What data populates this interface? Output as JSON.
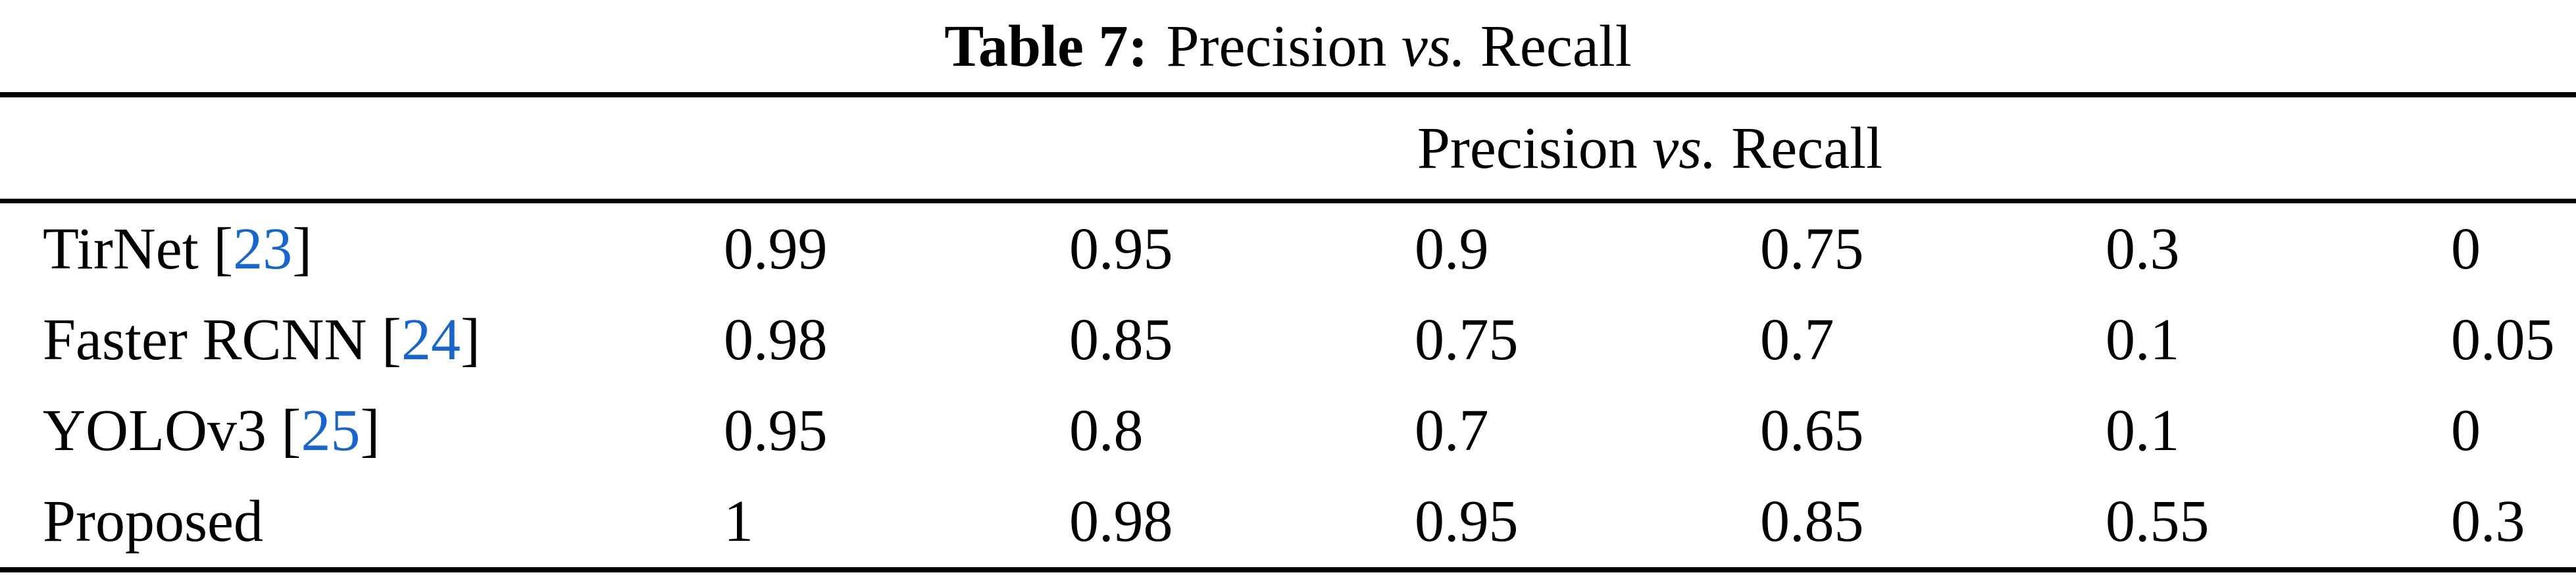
{
  "colors": {
    "text": "#000000",
    "citation_link": "#1565d2",
    "rule": "#000000",
    "background": "#ffffff"
  },
  "caption": {
    "prefix_bold": "Table 7:",
    "middle": "Precision ",
    "vs_italic": "vs.",
    "suffix": " Recall"
  },
  "header": {
    "middle": "Precision ",
    "vs_italic": "vs.",
    "suffix": " Recall"
  },
  "punctuation": {
    "cite_open": " [",
    "cite_close": "]"
  },
  "table": {
    "rows": [
      {
        "label": "TirNet",
        "cite": "23",
        "values": [
          "0.99",
          "0.95",
          "0.9",
          "0.75",
          "0.3",
          "0"
        ]
      },
      {
        "label": "Faster RCNN",
        "cite": "24",
        "values": [
          "0.98",
          "0.85",
          "0.75",
          "0.7",
          "0.1",
          "0.05"
        ]
      },
      {
        "label": "YOLOv3",
        "cite": "25",
        "values": [
          "0.95",
          "0.8",
          "0.7",
          "0.65",
          "0.1",
          "0"
        ]
      },
      {
        "label": "Proposed",
        "cite": null,
        "values": [
          "1",
          "0.98",
          "0.95",
          "0.85",
          "0.55",
          "0.3"
        ]
      }
    ]
  }
}
